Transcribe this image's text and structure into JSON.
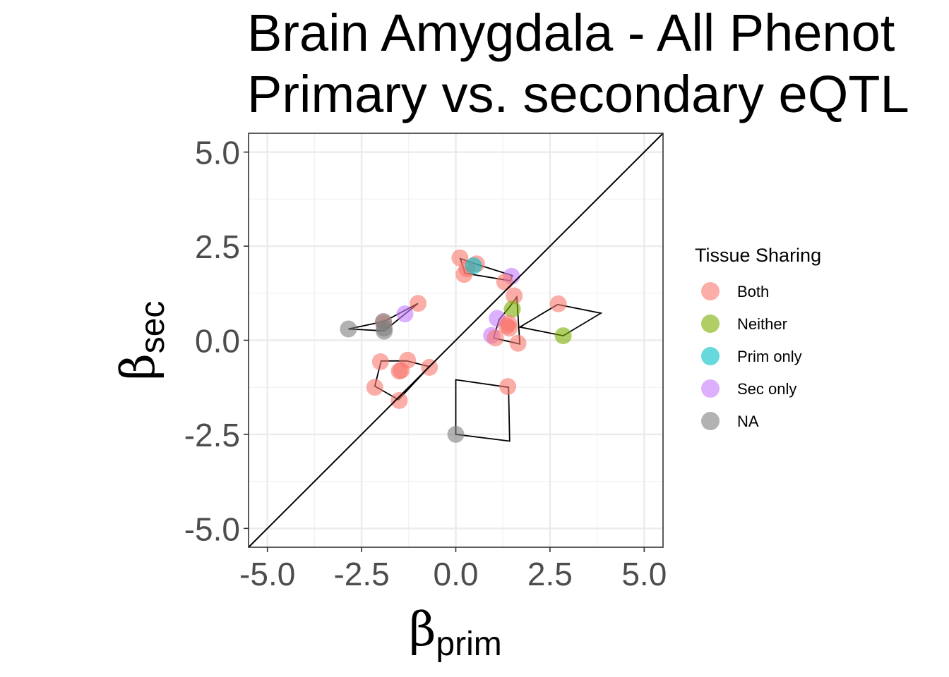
{
  "chart_data": {
    "type": "scatter",
    "title_lines": [
      "Brain Amygdala - All Phenot",
      "Primary vs. secondary eQTL"
    ],
    "xlabel_base": "β",
    "xlabel_sub": "prim",
    "ylabel_base": "β",
    "ylabel_sub": "sec",
    "xlim": [
      -5.5,
      5.5
    ],
    "ylim": [
      -5.5,
      5.5
    ],
    "xticks": [
      -5.0,
      -2.5,
      0.0,
      2.5,
      5.0
    ],
    "yticks": [
      -5.0,
      -2.5,
      0.0,
      2.5,
      5.0
    ],
    "xtick_labels": [
      "-5.0",
      "-2.5",
      "0.0",
      "2.5",
      "5.0"
    ],
    "ytick_labels": [
      "-5.0",
      "-2.5",
      "0.0",
      "2.5",
      "5.0"
    ],
    "grid": true,
    "diagonal_line": "y = x",
    "legend": {
      "title": "Tissue Sharing",
      "placement": "right",
      "entries": [
        {
          "label": "Both",
          "color": "#F8766D"
        },
        {
          "label": "Neither",
          "color": "#7CAE00"
        },
        {
          "label": "Prim only",
          "color": "#00BFC4"
        },
        {
          "label": "Sec only",
          "color": "#C77CFF"
        },
        {
          "label": "NA",
          "color": "#7F7F7F"
        }
      ]
    },
    "points": [
      {
        "x": 0.11,
        "y": 2.19,
        "group": "Both"
      },
      {
        "x": 0.55,
        "y": 2.03,
        "group": "Both"
      },
      {
        "x": 0.22,
        "y": 1.75,
        "group": "Both"
      },
      {
        "x": 0.3,
        "y": 1.9,
        "group": "Both"
      },
      {
        "x": 0.47,
        "y": 1.98,
        "group": "Prim only"
      },
      {
        "x": 1.48,
        "y": 1.7,
        "group": "Sec only"
      },
      {
        "x": 1.3,
        "y": 1.55,
        "group": "Both"
      },
      {
        "x": 1.55,
        "y": 1.18,
        "group": "Both"
      },
      {
        "x": -1.0,
        "y": 0.98,
        "group": "Both"
      },
      {
        "x": -1.35,
        "y": 0.7,
        "group": "Sec only"
      },
      {
        "x": -1.92,
        "y": 0.47,
        "group": "Both"
      },
      {
        "x": -1.92,
        "y": 0.5,
        "group": "NA"
      },
      {
        "x": -1.9,
        "y": 0.32,
        "group": "NA"
      },
      {
        "x": -1.9,
        "y": 0.24,
        "group": "NA"
      },
      {
        "x": -2.85,
        "y": 0.3,
        "group": "NA"
      },
      {
        "x": 2.72,
        "y": 0.97,
        "group": "Both"
      },
      {
        "x": 2.85,
        "y": 0.12,
        "group": "Neither"
      },
      {
        "x": 1.5,
        "y": 0.83,
        "group": "Neither"
      },
      {
        "x": 1.1,
        "y": 0.58,
        "group": "Sec only"
      },
      {
        "x": 1.4,
        "y": 0.45,
        "group": "Both"
      },
      {
        "x": 1.35,
        "y": 0.38,
        "group": "Both"
      },
      {
        "x": 1.42,
        "y": 0.32,
        "group": "Both"
      },
      {
        "x": 0.95,
        "y": 0.13,
        "group": "Sec only"
      },
      {
        "x": 1.05,
        "y": 0.06,
        "group": "Both"
      },
      {
        "x": 1.65,
        "y": -0.08,
        "group": "Both"
      },
      {
        "x": -2.0,
        "y": -0.57,
        "group": "Both"
      },
      {
        "x": -1.28,
        "y": -0.53,
        "group": "Both"
      },
      {
        "x": -0.7,
        "y": -0.72,
        "group": "Both"
      },
      {
        "x": -1.5,
        "y": -0.82,
        "group": "Both"
      },
      {
        "x": -1.45,
        "y": -0.8,
        "group": "Both"
      },
      {
        "x": -2.15,
        "y": -1.25,
        "group": "Both"
      },
      {
        "x": -1.5,
        "y": -1.6,
        "group": "Both"
      },
      {
        "x": 1.38,
        "y": -1.23,
        "group": "Both"
      },
      {
        "x": 0.0,
        "y": -2.5,
        "group": "NA"
      }
    ],
    "outline_polygons": [
      [
        [
          0.12,
          2.17
        ],
        [
          0.25,
          1.78
        ],
        [
          1.45,
          1.58
        ],
        [
          1.5,
          1.72
        ],
        [
          0.55,
          2.02
        ]
      ],
      [
        [
          1.62,
          1.15
        ],
        [
          1.7,
          -0.1
        ],
        [
          1.0,
          0.06
        ],
        [
          1.15,
          0.55
        ],
        [
          1.4,
          0.85
        ]
      ],
      [
        [
          2.7,
          0.95
        ],
        [
          3.85,
          0.72
        ],
        [
          2.85,
          0.12
        ],
        [
          1.7,
          0.35
        ]
      ],
      [
        [
          -1.0,
          0.98
        ],
        [
          -1.9,
          0.25
        ],
        [
          -2.85,
          0.3
        ],
        [
          -1.9,
          0.5
        ]
      ],
      [
        [
          -1.98,
          -0.55
        ],
        [
          -2.15,
          -1.22
        ],
        [
          -1.52,
          -1.58
        ],
        [
          -0.7,
          -0.7
        ],
        [
          -1.3,
          -0.55
        ]
      ],
      [
        [
          0.0,
          -1.05
        ],
        [
          1.4,
          -1.25
        ],
        [
          1.43,
          -2.68
        ],
        [
          0.0,
          -2.5
        ]
      ]
    ]
  }
}
